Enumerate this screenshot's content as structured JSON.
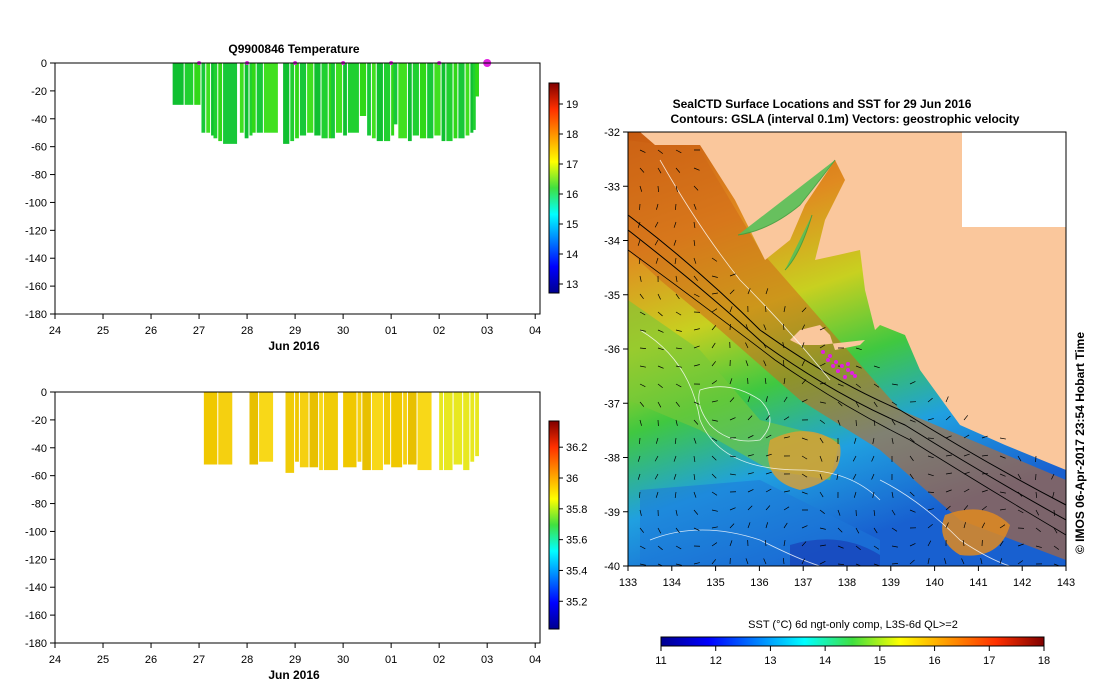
{
  "chart_data": [
    {
      "id": "temp-profile",
      "type": "bar",
      "title": "Q9900846  Temperature",
      "xlabel": "Jun 2016",
      "ylim": [
        -180,
        0
      ],
      "xticks": [
        "24",
        "25",
        "26",
        "27",
        "28",
        "29",
        "30",
        "01",
        "02",
        "03",
        "04"
      ],
      "yticks": [
        "0",
        "-20",
        "-40",
        "-60",
        "-80",
        "-100",
        "-120",
        "-140",
        "-160",
        "-180"
      ],
      "colorbar": {
        "ticks": [
          "19",
          "18",
          "17",
          "16",
          "15",
          "14",
          "13"
        ],
        "range": [
          12.7,
          19.7
        ]
      },
      "casts_day": [
        26.45,
        26.7,
        26.9,
        27.05,
        27.15,
        27.25,
        27.3,
        27.4,
        27.5,
        27.85,
        27.95,
        28.05,
        28.1,
        28.2,
        28.35,
        28.75,
        28.9,
        29.0,
        29.1,
        29.25,
        29.4,
        29.55,
        29.7,
        29.75,
        29.85,
        30.0,
        30.1,
        30.35,
        30.5,
        30.6,
        30.7,
        30.85,
        31.0,
        31.05,
        31.15,
        31.35,
        31.45,
        31.6,
        31.75,
        31.9,
        32.05,
        32.15,
        32.3,
        32.4,
        32.55,
        32.65,
        32.7,
        32.75
      ],
      "casts_depth": [
        -30,
        -30,
        -30,
        -50,
        -50,
        -52,
        -54,
        -56,
        -58,
        -50,
        -54,
        -52,
        -50,
        -50,
        -50,
        -58,
        -56,
        -54,
        -52,
        -50,
        -52,
        -54,
        -54,
        -54,
        -50,
        -52,
        -50,
        -38,
        -52,
        -54,
        -56,
        -56,
        -52,
        -44,
        -54,
        -56,
        -52,
        -54,
        -54,
        -52,
        -56,
        -56,
        -54,
        -54,
        -52,
        -50,
        -48,
        -24
      ],
      "markers_day": [
        27.0,
        28.0,
        29.0,
        30.0,
        31.0,
        32.0,
        33.0
      ]
    },
    {
      "id": "salinity-profile",
      "type": "bar",
      "title": "",
      "xlabel": "Jun 2016",
      "ylim": [
        -180,
        0
      ],
      "xticks": [
        "24",
        "25",
        "26",
        "27",
        "28",
        "29",
        "30",
        "01",
        "02",
        "03",
        "04"
      ],
      "yticks": [
        "0",
        "-20",
        "-40",
        "-60",
        "-80",
        "-100",
        "-120",
        "-140",
        "-160",
        "-180"
      ],
      "colorbar": {
        "ticks": [
          "36.2",
          "36",
          "35.8",
          "35.6",
          "35.4",
          "35.2"
        ],
        "range": [
          35.02,
          36.37
        ]
      },
      "casts_day": [
        27.1,
        27.4,
        28.05,
        28.25,
        28.8,
        29.0,
        29.1,
        29.3,
        29.5,
        29.6,
        30.0,
        30.3,
        30.4,
        30.6,
        30.85,
        31.0,
        31.25,
        31.35,
        31.55,
        32.0,
        32.1,
        32.3,
        32.5,
        32.65,
        32.75
      ],
      "casts_depth": [
        -52,
        -52,
        -52,
        -50,
        -58,
        -50,
        -54,
        -54,
        -56,
        -56,
        -54,
        -50,
        -56,
        -56,
        -52,
        -54,
        -52,
        -52,
        -56,
        -56,
        -56,
        -52,
        -56,
        -50,
        -46
      ]
    },
    {
      "id": "sst-map",
      "type": "heatmap",
      "title": "SealCTD Surface Locations and SST for 29 Jun 2016",
      "subtitle": "Contours: GSLA (interval 0.1m) Vectors: geostrophic velocity",
      "xlim": [
        133,
        143
      ],
      "ylim": [
        -40,
        -32
      ],
      "xticks": [
        "133",
        "134",
        "135",
        "136",
        "137",
        "138",
        "139",
        "140",
        "141",
        "142",
        "143"
      ],
      "yticks": [
        "-32",
        "-33",
        "-34",
        "-35",
        "-36",
        "-37",
        "-38",
        "-39",
        "-40"
      ],
      "colorbar_label": "SST (°C) 6d ngt-only comp, L3S-6d QL>=2",
      "colorbar_ticks": [
        "11",
        "12",
        "13",
        "14",
        "15",
        "16",
        "17",
        "18"
      ],
      "colorbar_range": [
        11,
        18
      ],
      "side_text": "© IMOS 06-Apr-2017 23:54 Hobart Time"
    }
  ],
  "colors": {
    "land": "#fac79c",
    "marker": "#e020e0"
  }
}
